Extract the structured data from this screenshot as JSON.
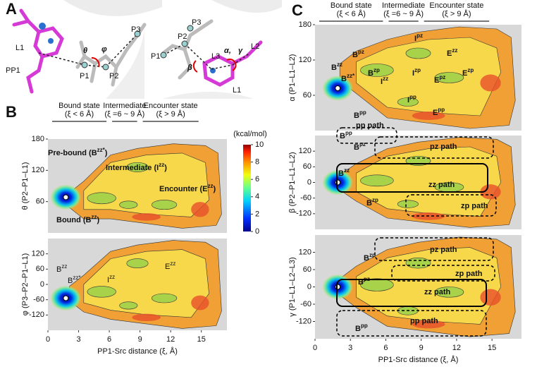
{
  "panelA": {
    "label": "A",
    "left": {
      "labels": [
        "L1",
        "PP1",
        "P1",
        "P2",
        "P3"
      ],
      "angles": [
        "θ",
        "φ"
      ]
    },
    "right": {
      "labels": [
        "P1",
        "P2",
        "P3",
        "L3",
        "L2",
        "L1"
      ],
      "angles": [
        "β",
        "α,",
        "γ"
      ]
    }
  },
  "panelB": {
    "label": "B",
    "states": [
      {
        "name": "Bound state",
        "range": "(ξ < 6 Å)"
      },
      {
        "name": "Intermediate",
        "range": "(ξ =6 ~ 9 Å)"
      },
      {
        "name": "Encounter state",
        "range": "(ξ > 9 Å)"
      }
    ],
    "colorbar": {
      "unit": "(kcal/mol)",
      "lim": [
        0,
        10
      ],
      "ticks": [
        0,
        2,
        4,
        6,
        8,
        10
      ]
    },
    "xlabel": "PP1-Src distance (ξ, Å)",
    "xlim": [
      0,
      17.5
    ],
    "xticks": [
      0,
      3,
      6,
      9,
      12,
      15
    ],
    "plots": [
      {
        "ylabel": "θ (P2–P1–L1)",
        "ylim": [
          0,
          180
        ],
        "yticks": [
          60,
          120,
          180
        ],
        "annotations": [
          {
            "pre": "Pre-bound (B",
            "sup": "zz*",
            "post": ")"
          },
          {
            "pre": "Intermediate (I",
            "sup": "zz",
            "post": ")"
          },
          {
            "pre": "Encounter (E",
            "sup": "zz",
            "post": ")"
          },
          {
            "pre": "Bound (B",
            "sup": "zz",
            "post": ")"
          }
        ]
      },
      {
        "ylabel": "φ (P3–P2–P1–L1)",
        "ylim": [
          -180,
          180
        ],
        "yticks": [
          -120,
          -60,
          0,
          60,
          120
        ],
        "annotations": [
          {
            "pre": "B",
            "sup": "zz"
          },
          {
            "pre": "B",
            "sup": "zz*"
          },
          {
            "pre": "I",
            "sup": "zz"
          },
          {
            "pre": "E",
            "sup": "zz"
          }
        ]
      }
    ]
  },
  "panelC": {
    "label": "C",
    "states": [
      {
        "name": "Bound state",
        "range": "(ξ < 6 Å)"
      },
      {
        "name": "Intermediate",
        "range": "(ξ =6 ~ 9 Å)"
      },
      {
        "name": "Encounter state",
        "range": "(ξ > 9 Å)"
      }
    ],
    "xlabel": "PP1-Src distance (ξ, Å)",
    "xlim": [
      0,
      17.5
    ],
    "xticks": [
      0,
      3,
      6,
      9,
      12,
      15
    ],
    "plots": [
      {
        "ylabel": "α (P1–L1–L2)",
        "ylim": [
          0,
          180
        ],
        "yticks": [
          60,
          120,
          180
        ],
        "annotations": [
          {
            "pre": "B",
            "sup": "zz"
          },
          {
            "pre": "B",
            "sup": "pz"
          },
          {
            "pre": "I",
            "sup": "pz"
          },
          {
            "pre": "B",
            "sup": "zz*"
          },
          {
            "pre": "B",
            "sup": "zp"
          },
          {
            "pre": "I",
            "sup": "zz"
          },
          {
            "pre": "I",
            "sup": "zp"
          },
          {
            "pre": "E",
            "sup": "zz"
          },
          {
            "pre": "E",
            "sup": "pz"
          },
          {
            "pre": "E",
            "sup": "zp"
          },
          {
            "pre": "I",
            "sup": "pp"
          },
          {
            "pre": "B",
            "sup": "pp"
          },
          {
            "pre": "E",
            "sup": "pp"
          }
        ]
      },
      {
        "ylabel": "β (P2–P1–L1–L2)",
        "ylim": [
          -180,
          180
        ],
        "yticks": [
          -120,
          -60,
          0,
          60,
          120
        ],
        "annotations": [
          {
            "pre": "pp path"
          },
          {
            "pre": "B",
            "sup": "pp"
          },
          {
            "pre": "B",
            "sup": "pz"
          },
          {
            "pre": "pz path"
          },
          {
            "pre": "B",
            "sup": "zz"
          },
          {
            "pre": "zz path"
          },
          {
            "pre": "B",
            "sup": "zp"
          },
          {
            "pre": "zp path"
          }
        ]
      },
      {
        "ylabel": "γ (P1–L1–L2–L3)",
        "ylim": [
          -180,
          180
        ],
        "yticks": [
          -120,
          -60,
          0,
          60,
          120
        ],
        "annotations": [
          {
            "pre": "pz path"
          },
          {
            "pre": "B",
            "sup": "zp"
          },
          {
            "pre": "B",
            "sup": "pz"
          },
          {
            "pre": "zp path"
          },
          {
            "pre": "zz path"
          },
          {
            "pre": "B",
            "sup": "pp"
          },
          {
            "pre": "pp path"
          }
        ]
      }
    ]
  }
}
